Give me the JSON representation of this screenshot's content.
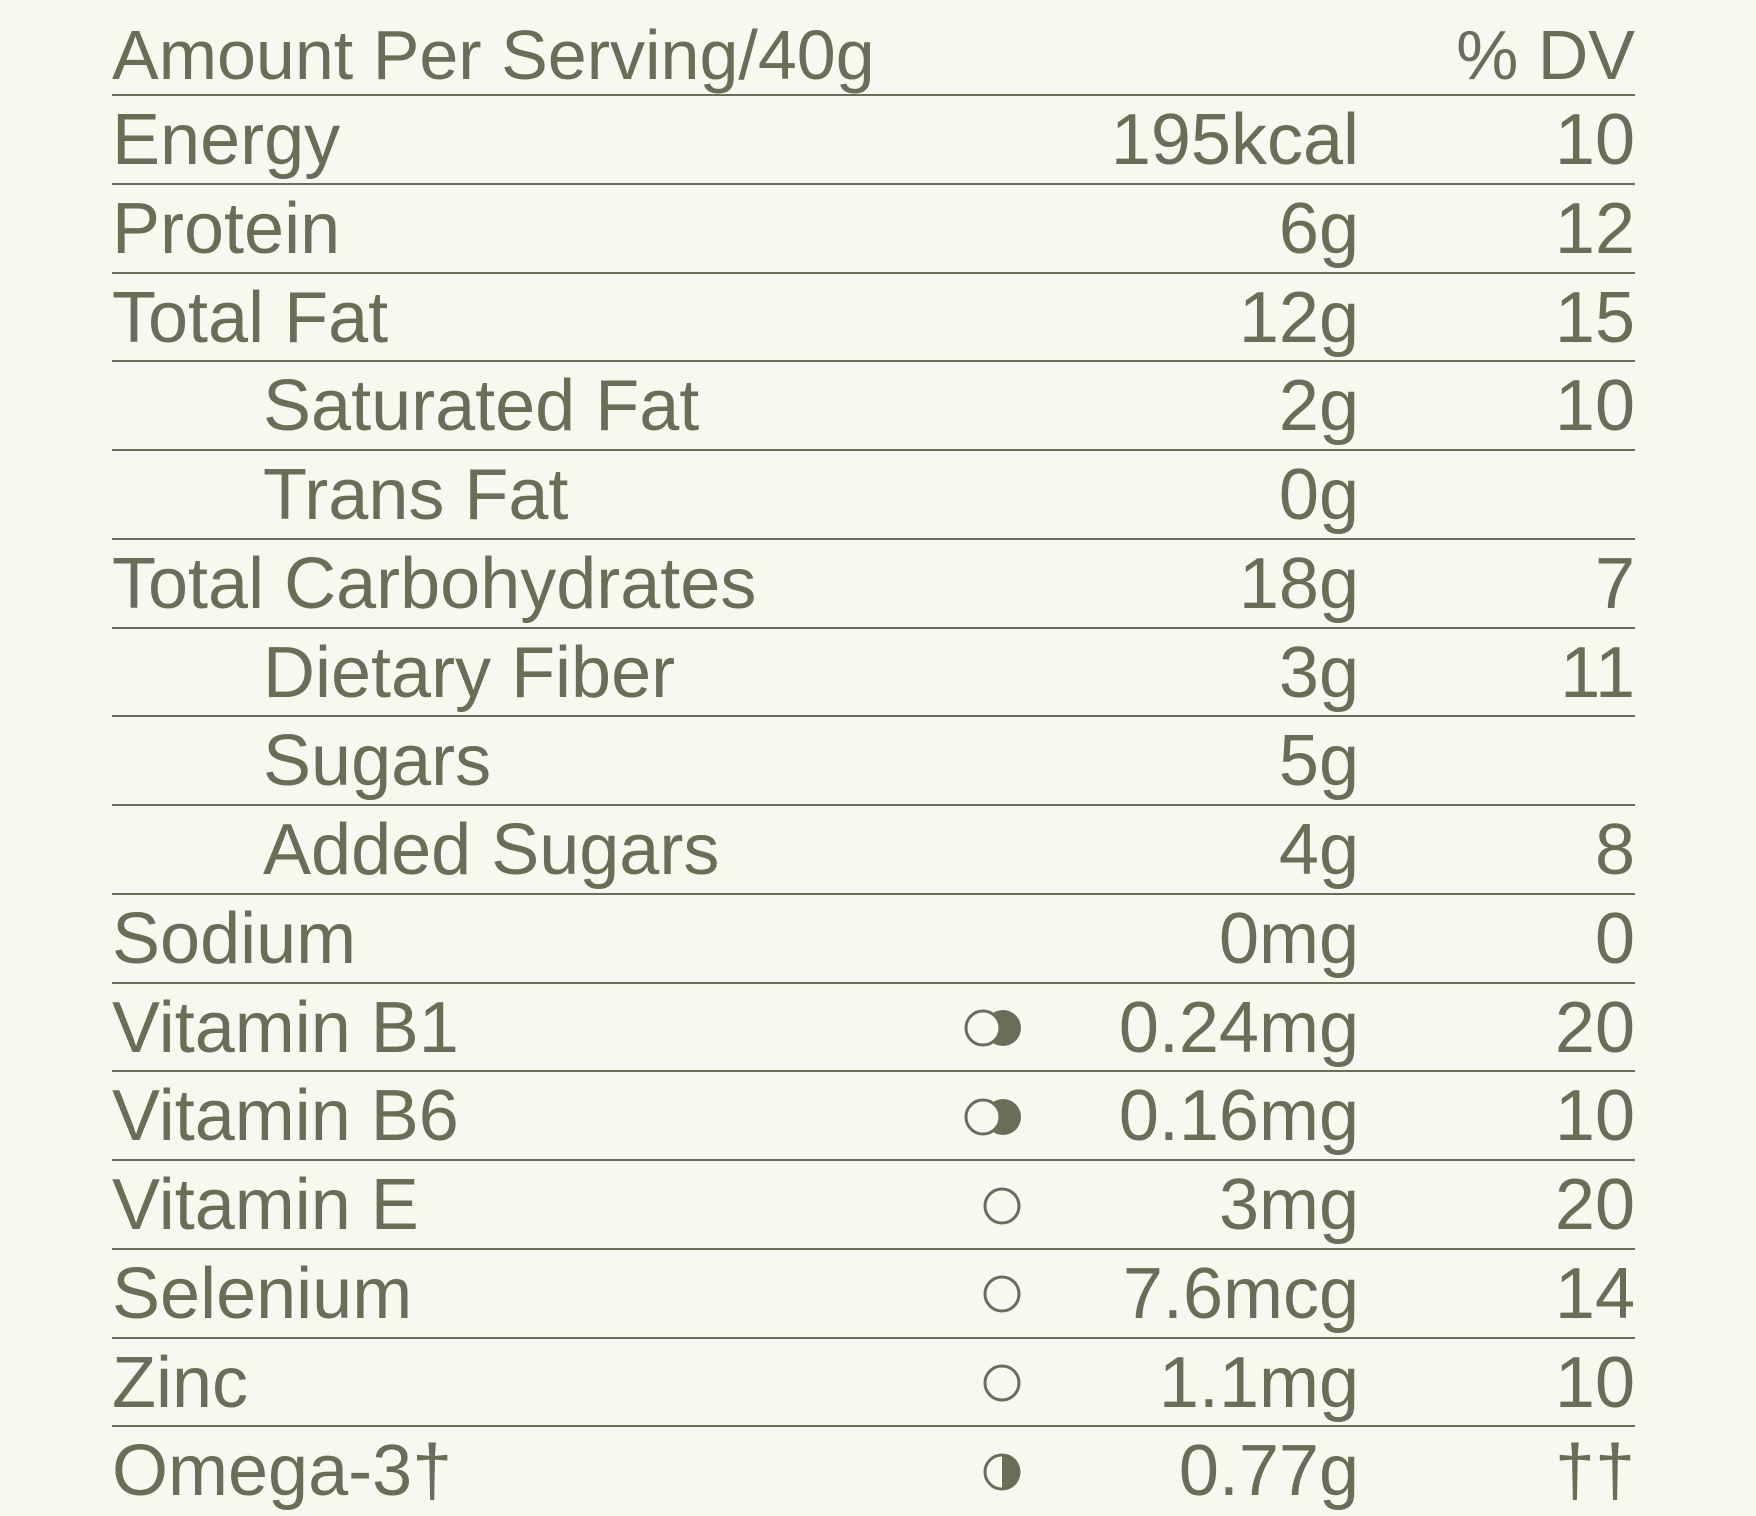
{
  "header": {
    "amount": "Amount Per Serving/40g",
    "dv": "% DV"
  },
  "rows": [
    {
      "name": "Energy",
      "amount": "195kcal",
      "dv": "10"
    },
    {
      "name": "Protein",
      "amount": "6g",
      "dv": "12"
    },
    {
      "name": "Total Fat",
      "amount": "12g",
      "dv": "15"
    },
    {
      "name": "Saturated Fat",
      "amount": "2g",
      "dv": "10",
      "indent": true
    },
    {
      "name": "Trans Fat",
      "amount": "0g",
      "indent": true
    },
    {
      "name": "Total Carbohydrates",
      "amount": "18g",
      "dv": "7"
    },
    {
      "name": "Dietary Fiber",
      "amount": "3g",
      "dv": "11",
      "indent": true
    },
    {
      "name": "Sugars",
      "amount": "5g",
      "indent": true
    },
    {
      "name": "Added Sugars",
      "amount": "4g",
      "dv": "8",
      "indent": true
    },
    {
      "name": "Sodium",
      "amount": "0mg",
      "dv": "0"
    },
    {
      "name": "Vitamin B1",
      "amount": "0.24mg",
      "dv": "20"
    },
    {
      "name": "Vitamin B6",
      "amount": "0.16mg",
      "dv": "10"
    },
    {
      "name": "Vitamin E",
      "amount": "3mg",
      "dv": "20"
    },
    {
      "name": "Selenium",
      "amount": "7.6mcg",
      "dv": "14"
    },
    {
      "name": "Zinc",
      "amount": "1.1mg",
      "dv": "10"
    },
    {
      "name": "Omega-3†",
      "amount": "0.77g",
      "dv": "††"
    }
  ]
}
